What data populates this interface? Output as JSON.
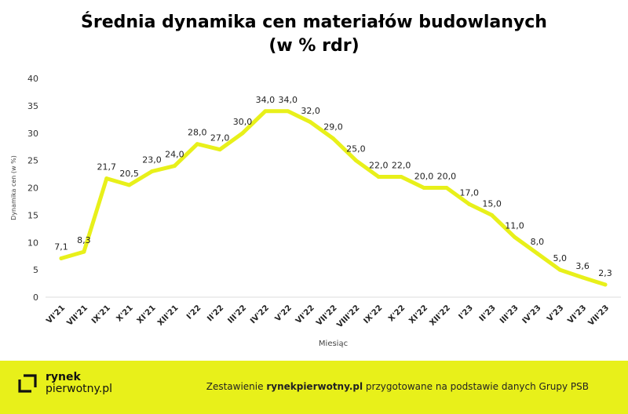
{
  "title": {
    "line1": "Średnia dynamika cen materiałów budowlanych",
    "line2": "(w % rdr)"
  },
  "chart_data": {
    "type": "line",
    "title": "Średnia dynamika cen materiałów budowlanych (w % rdr)",
    "xlabel": "Miesiąc",
    "ylabel": "Dynamika cen (w %)",
    "ylim": [
      0,
      40
    ],
    "yticks": [
      0,
      5,
      10,
      15,
      20,
      25,
      30,
      35,
      40
    ],
    "grid": false,
    "line_color": "#e8f01a",
    "categories": [
      "VI'21",
      "VII'21",
      "IX'21",
      "X'21",
      "XI'21",
      "XII'21",
      "I'22",
      "II'22",
      "III'22",
      "IV'22",
      "V'22",
      "VI'22",
      "VII'22",
      "VIII'22",
      "IX'22",
      "X'22",
      "XI'22",
      "XII'22",
      "I'23",
      "II'23",
      "III'23",
      "IV'23",
      "V'23",
      "VI'23",
      "VII'23"
    ],
    "values": [
      7.1,
      8.3,
      21.7,
      20.5,
      23.0,
      24.0,
      28.0,
      27.0,
      30.0,
      34.0,
      34.0,
      32.0,
      29.0,
      25.0,
      22.0,
      22.0,
      20.0,
      20.0,
      17.0,
      15.0,
      11.0,
      8.0,
      5.0,
      3.6,
      2.3
    ],
    "data_labels": [
      "7,1",
      "8,3",
      "21,7",
      "20,5",
      "23,0",
      "24,0",
      "28,0",
      "27,0",
      "30,0",
      "34,0",
      "34,0",
      "32,0",
      "29,0",
      "25,0",
      "22,0",
      "22,0",
      "20,0",
      "20,0",
      "17,0",
      "15,0",
      "11,0",
      "8,0",
      "5,0",
      "3,6",
      "2,3"
    ]
  },
  "footer": {
    "logo_line1": "rynek",
    "logo_line2": "pierwotny.pl",
    "note_prefix": "Zestawienie ",
    "note_brand": "rynekpierwotny.pl",
    "note_suffix": " przygotowane na podstawie danych Grupy PSB",
    "background": "#e8f01a"
  }
}
